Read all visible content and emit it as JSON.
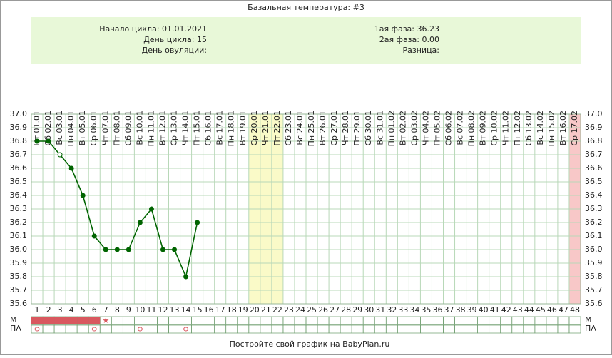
{
  "chart_data": {
    "type": "line",
    "title": "Базальная температура: #3",
    "info": {
      "left": [
        "Начало цикла: 01.01.2021",
        "День цикла: 15",
        "День овуляции:"
      ],
      "right": [
        "1ая фаза: 36.23",
        "2ая фаза: 0.00",
        "Разница:"
      ]
    },
    "categories": [
      "Пт 01.01",
      "Сб 02.01",
      "Вс 03.01",
      "Пн 04.01",
      "Вт 05.01",
      "Ср 06.01",
      "Чт 07.01",
      "Пт 08.01",
      "Сб 09.01",
      "Вс 10.01",
      "Пн 11.01",
      "Вт 12.01",
      "Ср 13.01",
      "Чт 14.01",
      "Пт 15.01",
      "Сб 16.01",
      "Вс 17.01",
      "Пн 18.01",
      "Вт 19.01",
      "Ср 20.01",
      "Чт 21.01",
      "Пт 22.01",
      "Сб 23.01",
      "Вс 24.01",
      "Пн 25.01",
      "Вт 26.01",
      "Ср 27.01",
      "Чт 28.01",
      "Пт 29.01",
      "Сб 30.01",
      "Вс 31.01",
      "Пн 01.02",
      "Вт 02.02",
      "Ср 03.02",
      "Чт 04.02",
      "Пт 05.02",
      "Сб 06.02",
      "Вс 07.02",
      "Пн 08.02",
      "Вт 09.02",
      "Ср 10.02",
      "Чт 11.02",
      "Пт 12.02",
      "Сб 13.02",
      "Вс 14.02",
      "Пн 15.02",
      "Вт 16.02",
      "Ср 17.02"
    ],
    "day_numbers": [
      1,
      2,
      3,
      4,
      5,
      6,
      7,
      8,
      9,
      10,
      11,
      12,
      13,
      14,
      15,
      16,
      17,
      18,
      19,
      20,
      21,
      22,
      23,
      24,
      25,
      26,
      27,
      28,
      29,
      30,
      31,
      32,
      33,
      34,
      35,
      36,
      37,
      38,
      39,
      40,
      41,
      42,
      43,
      44,
      45,
      46,
      47,
      48
    ],
    "values": [
      36.8,
      36.8,
      36.7,
      36.6,
      36.4,
      36.1,
      36.0,
      36.0,
      36.0,
      36.2,
      36.3,
      36.0,
      36.0,
      35.8,
      36.2,
      null,
      null,
      null,
      null,
      null,
      null,
      null,
      null,
      null,
      null,
      null,
      null,
      null,
      null,
      null,
      null,
      null,
      null,
      null,
      null,
      null,
      null,
      null,
      null,
      null,
      null,
      null,
      null,
      null,
      null,
      null,
      null,
      null
    ],
    "color": "#006400",
    "open_markers": [
      2
    ],
    "ylim": [
      35.6,
      37.0
    ],
    "yticks": [
      {
        "value": 35.6,
        "label": "35.6"
      },
      35.7,
      35.8,
      35.9,
      {
        "value": 36.0,
        "label": "36.0"
      },
      36.1,
      36.2,
      36.3,
      36.4,
      36.5,
      36.6,
      36.7,
      36.8,
      36.9,
      {
        "value": 37.0,
        "label": "37.0"
      }
    ],
    "grid": true,
    "highlights": [
      {
        "from_day": 20,
        "to_day": 22,
        "color": "#fafac8"
      },
      {
        "from_day": 48,
        "to_day": 48,
        "color": "#f8c8c8"
      }
    ],
    "m_row": {
      "label": "М",
      "filled_days": [
        1,
        2,
        3,
        4,
        5,
        6
      ],
      "star_days": [
        7
      ],
      "color": "#d9585f"
    },
    "pa_row": {
      "label": "ПА",
      "circle_days": [
        1,
        6,
        10,
        14
      ],
      "color": "#d9585f"
    },
    "footer": "Постройте свой график на BabyPlan.ru"
  }
}
